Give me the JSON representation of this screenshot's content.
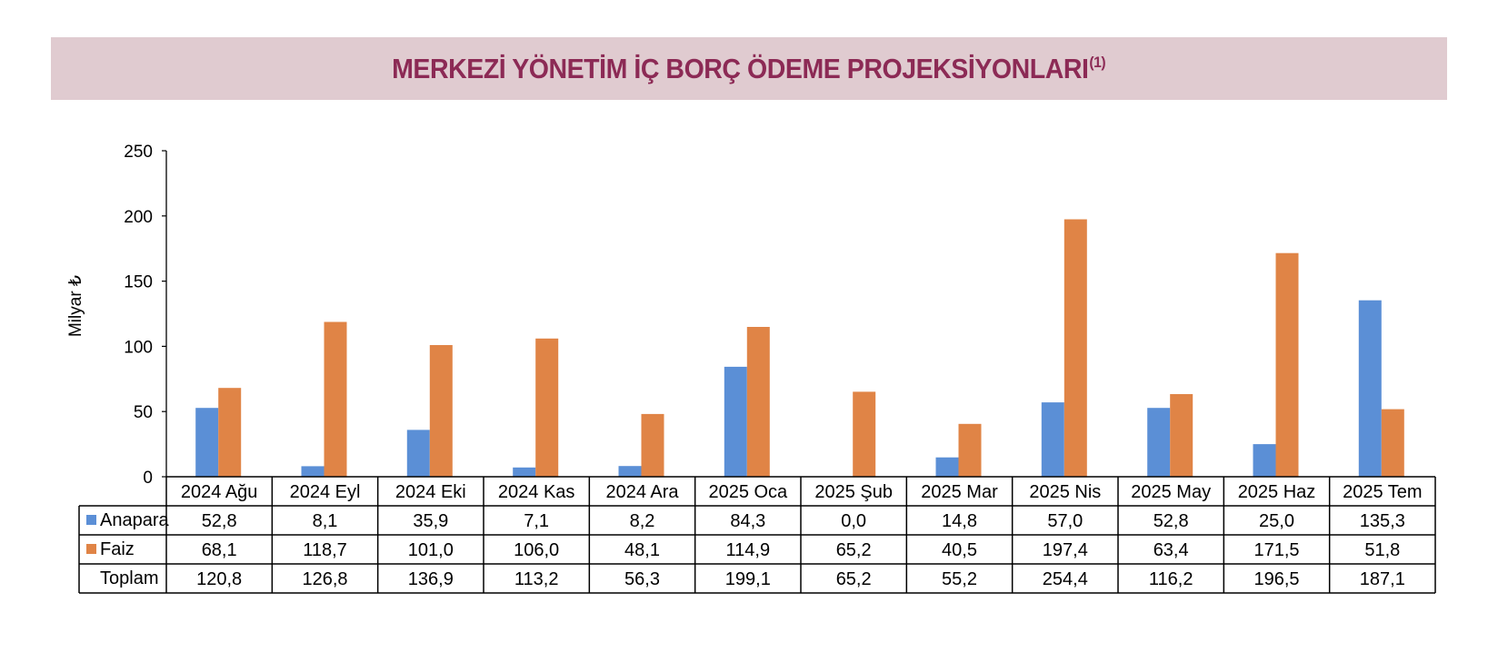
{
  "header": {
    "title": "MERKEZİ YÖNETİM İÇ BORÇ ÖDEME PROJEKSİYONLARI",
    "footnote": "(1)"
  },
  "chart_data": {
    "type": "bar",
    "title": "MERKEZİ YÖNETİM İÇ BORÇ ÖDEME PROJEKSİYONLARI",
    "ylabel": "Milyar ₺",
    "xlabel": "",
    "ylim": [
      0,
      250
    ],
    "yticks": [
      0,
      50,
      100,
      150,
      200,
      250
    ],
    "grid": false,
    "legend": "table-left",
    "categories": [
      "2024 Ağu",
      "2024 Eyl",
      "2024 Eki",
      "2024 Kas",
      "2024 Ara",
      "2025 Oca",
      "2025 Şub",
      "2025 Mar",
      "2025 Nis",
      "2025 May",
      "2025 Haz",
      "2025 Tem"
    ],
    "series": [
      {
        "name": "Anapara",
        "color": "#5b8fd6",
        "values": [
          52.8,
          8.1,
          35.9,
          7.1,
          8.2,
          84.3,
          0.0,
          14.8,
          57.0,
          52.8,
          25.0,
          135.3
        ],
        "labels": [
          "52,8",
          "8,1",
          "35,9",
          "7,1",
          "8,2",
          "84,3",
          "0,0",
          "14,8",
          "57,0",
          "52,8",
          "25,0",
          "135,3"
        ]
      },
      {
        "name": "Faiz",
        "color": "#e08446",
        "values": [
          68.1,
          118.7,
          101.0,
          106.0,
          48.1,
          114.9,
          65.2,
          40.5,
          197.4,
          63.4,
          171.5,
          51.8
        ],
        "labels": [
          "68,1",
          "118,7",
          "101,0",
          "106,0",
          "48,1",
          "114,9",
          "65,2",
          "40,5",
          "197,4",
          "63,4",
          "171,5",
          "51,8"
        ]
      }
    ],
    "table_rows": [
      {
        "name": "Anapara",
        "color": "#5b8fd6",
        "values": [
          "52,8",
          "8,1",
          "35,9",
          "7,1",
          "8,2",
          "84,3",
          "0,0",
          "14,8",
          "57,0",
          "52,8",
          "25,0",
          "135,3"
        ]
      },
      {
        "name": "Faiz",
        "color": "#e08446",
        "values": [
          "68,1",
          "118,7",
          "101,0",
          "106,0",
          "48,1",
          "114,9",
          "65,2",
          "40,5",
          "197,4",
          "63,4",
          "171,5",
          "51,8"
        ]
      },
      {
        "name": "Toplam",
        "color": "",
        "values": [
          "120,8",
          "126,8",
          "136,9",
          "113,2",
          "56,3",
          "199,1",
          "65,2",
          "55,2",
          "254,4",
          "116,2",
          "196,5",
          "187,1"
        ]
      }
    ]
  }
}
